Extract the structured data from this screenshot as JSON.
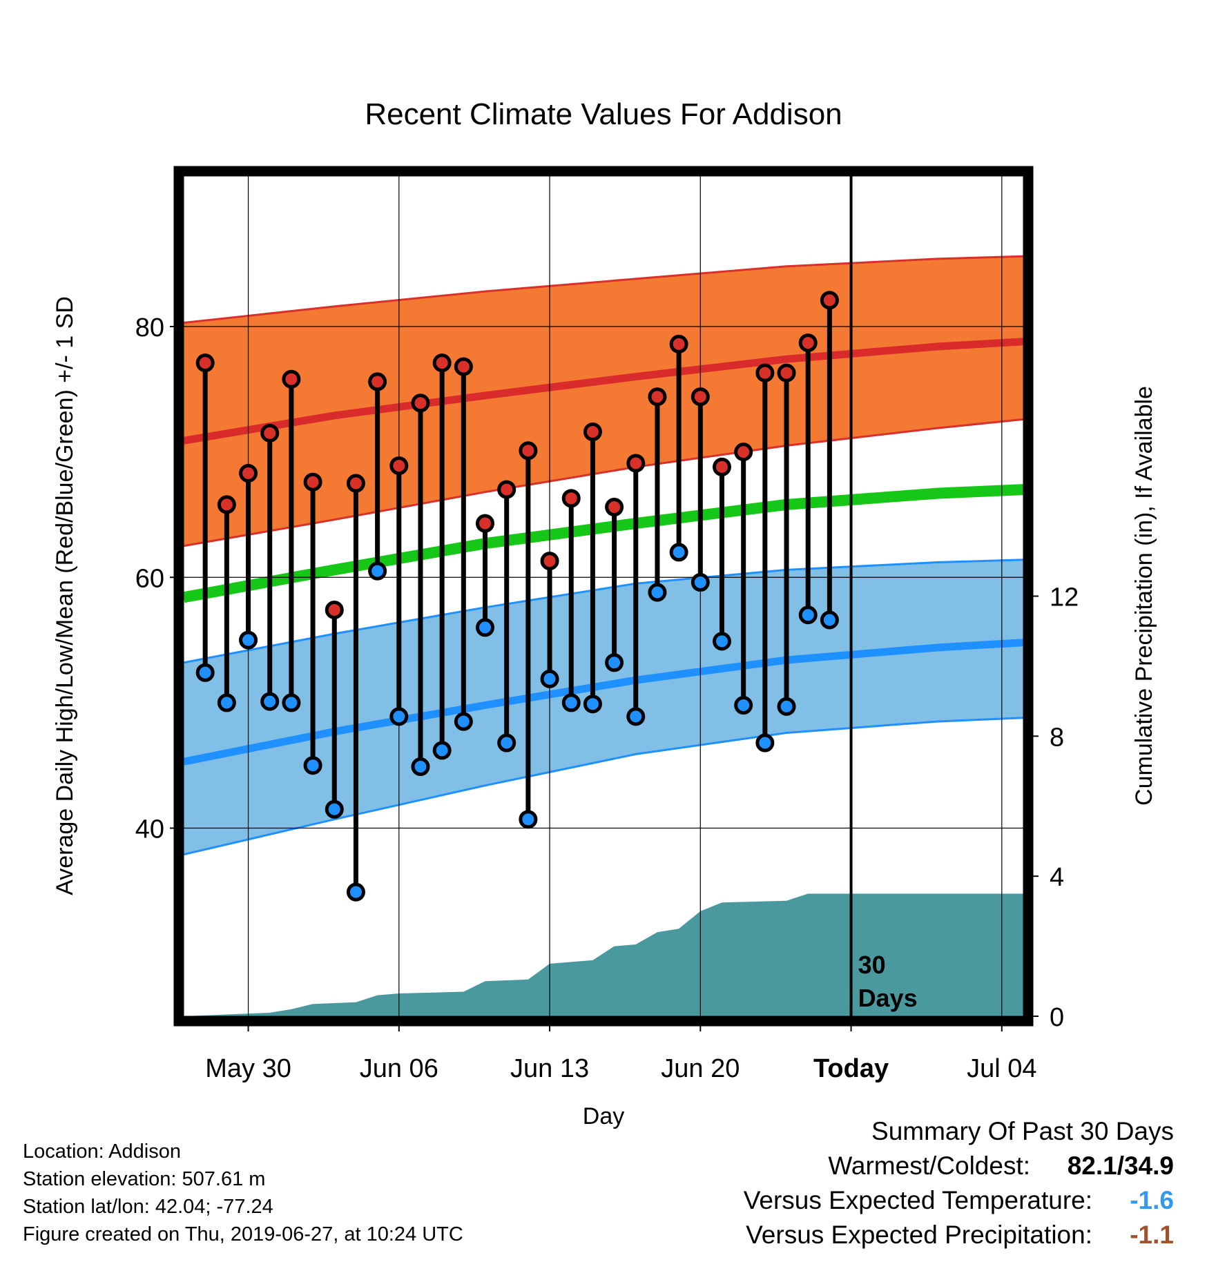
{
  "chart_data": {
    "type": "line",
    "title": "Recent Climate Values For Addison",
    "xlabel": "Day",
    "ylabel": "Average Daily High/Low/Mean (Red/Blue/Green) +/- 1 SD",
    "y2label": "Cumulative Precipitation (in), If Available",
    "x_range": [
      "2019-05-27",
      "2019-07-05"
    ],
    "ylim": [
      25,
      92
    ],
    "y2lim": [
      0,
      24
    ],
    "yticks": [
      40,
      60,
      80
    ],
    "y2ticks": [
      0,
      4,
      8,
      12
    ],
    "xticks": [
      {
        "date": "2019-05-30",
        "label": "May 30"
      },
      {
        "date": "2019-06-06",
        "label": "Jun 06"
      },
      {
        "date": "2019-06-13",
        "label": "Jun 13"
      },
      {
        "date": "2019-06-20",
        "label": "Jun 20"
      },
      {
        "date": "2019-06-27",
        "label": "Today"
      },
      {
        "date": "2019-07-04",
        "label": "Jul 04"
      }
    ],
    "today": "2019-06-27",
    "today_annotation": [
      "30",
      "Days"
    ],
    "grid": true,
    "colors": {
      "high_band": "#f47a33",
      "high_mean": "#d92b2b",
      "high_band_edge": "#d9302a",
      "low_band": "#82bfe6",
      "low_mean": "#1e90ff",
      "mean_line": "#17c717",
      "precip": "#4a999f",
      "high_dot": "#d9302a",
      "low_dot": "#1e90ff"
    },
    "normals": {
      "dates": [
        "2019-05-27",
        "2019-06-03",
        "2019-06-10",
        "2019-06-17",
        "2019-06-24",
        "2019-07-01",
        "2019-07-05"
      ],
      "high_upper": [
        80.3,
        81.6,
        82.8,
        83.8,
        84.8,
        85.4,
        85.6
      ],
      "high_mean": [
        70.9,
        72.9,
        74.5,
        76.0,
        77.4,
        78.4,
        78.8
      ],
      "high_lower": [
        62.5,
        64.6,
        66.8,
        68.8,
        70.5,
        71.9,
        72.6
      ],
      "mean": [
        58.4,
        60.6,
        62.7,
        64.3,
        65.8,
        66.7,
        67.0
      ],
      "low_upper": [
        53.2,
        55.5,
        57.6,
        59.5,
        60.6,
        61.2,
        61.4
      ],
      "low_mean": [
        45.3,
        47.7,
        49.8,
        51.8,
        53.4,
        54.4,
        54.8
      ],
      "low_lower": [
        37.9,
        40.7,
        43.4,
        45.9,
        47.6,
        48.5,
        48.8
      ]
    },
    "daily": {
      "dates": [
        "2019-05-28",
        "2019-05-29",
        "2019-05-30",
        "2019-05-31",
        "2019-06-01",
        "2019-06-02",
        "2019-06-03",
        "2019-06-04",
        "2019-06-05",
        "2019-06-06",
        "2019-06-07",
        "2019-06-08",
        "2019-06-09",
        "2019-06-10",
        "2019-06-11",
        "2019-06-12",
        "2019-06-13",
        "2019-06-14",
        "2019-06-15",
        "2019-06-16",
        "2019-06-17",
        "2019-06-18",
        "2019-06-19",
        "2019-06-20",
        "2019-06-21",
        "2019-06-22",
        "2019-06-23",
        "2019-06-24",
        "2019-06-25",
        "2019-06-26"
      ],
      "high": [
        77.1,
        65.8,
        68.3,
        71.5,
        75.8,
        67.6,
        57.4,
        67.5,
        75.6,
        68.9,
        73.9,
        77.1,
        76.8,
        64.3,
        67.0,
        70.1,
        61.3,
        66.3,
        71.6,
        65.6,
        69.1,
        74.4,
        78.6,
        74.4,
        68.8,
        70.0,
        76.3,
        76.3,
        78.7,
        82.1
      ],
      "low": [
        52.4,
        50.0,
        55.0,
        50.1,
        50.0,
        45.0,
        41.5,
        34.9,
        60.5,
        48.9,
        44.9,
        46.2,
        48.5,
        56.0,
        46.8,
        40.7,
        51.9,
        50.0,
        49.9,
        53.2,
        48.9,
        58.8,
        62.0,
        59.6,
        54.9,
        49.8,
        46.8,
        49.7,
        57.0,
        56.6
      ]
    },
    "precip": {
      "dates": [
        "2019-05-27",
        "2019-05-31",
        "2019-06-01",
        "2019-06-02",
        "2019-06-04",
        "2019-06-05",
        "2019-06-06",
        "2019-06-09",
        "2019-06-10",
        "2019-06-12",
        "2019-06-13",
        "2019-06-15",
        "2019-06-16",
        "2019-06-17",
        "2019-06-18",
        "2019-06-19",
        "2019-06-20",
        "2019-06-21",
        "2019-06-24",
        "2019-06-25",
        "2019-07-05"
      ],
      "values": [
        0.0,
        0.1,
        0.2,
        0.35,
        0.4,
        0.6,
        0.65,
        0.7,
        1.0,
        1.05,
        1.5,
        1.6,
        2.0,
        2.05,
        2.4,
        2.5,
        3.0,
        3.25,
        3.3,
        3.5,
        3.5
      ]
    }
  },
  "footer": {
    "location": "Location: Addison",
    "elevation": "Station elevation: 507.61 m",
    "latlon": "Station lat/lon: 42.04; -77.24",
    "created": "Figure created on Thu, 2019-06-27, at 10:24 UTC"
  },
  "summary": {
    "heading": "Summary Of Past 30 Days",
    "warm_cold_label": "Warmest/Coldest:",
    "warm_cold_value": "82.1/34.9",
    "temp_label": "Versus Expected Temperature:",
    "temp_value": "-1.6",
    "temp_color": "#3399ee",
    "precip_label": "Versus Expected Precipitation:",
    "precip_value": "-1.1",
    "precip_color": "#a0522d"
  }
}
